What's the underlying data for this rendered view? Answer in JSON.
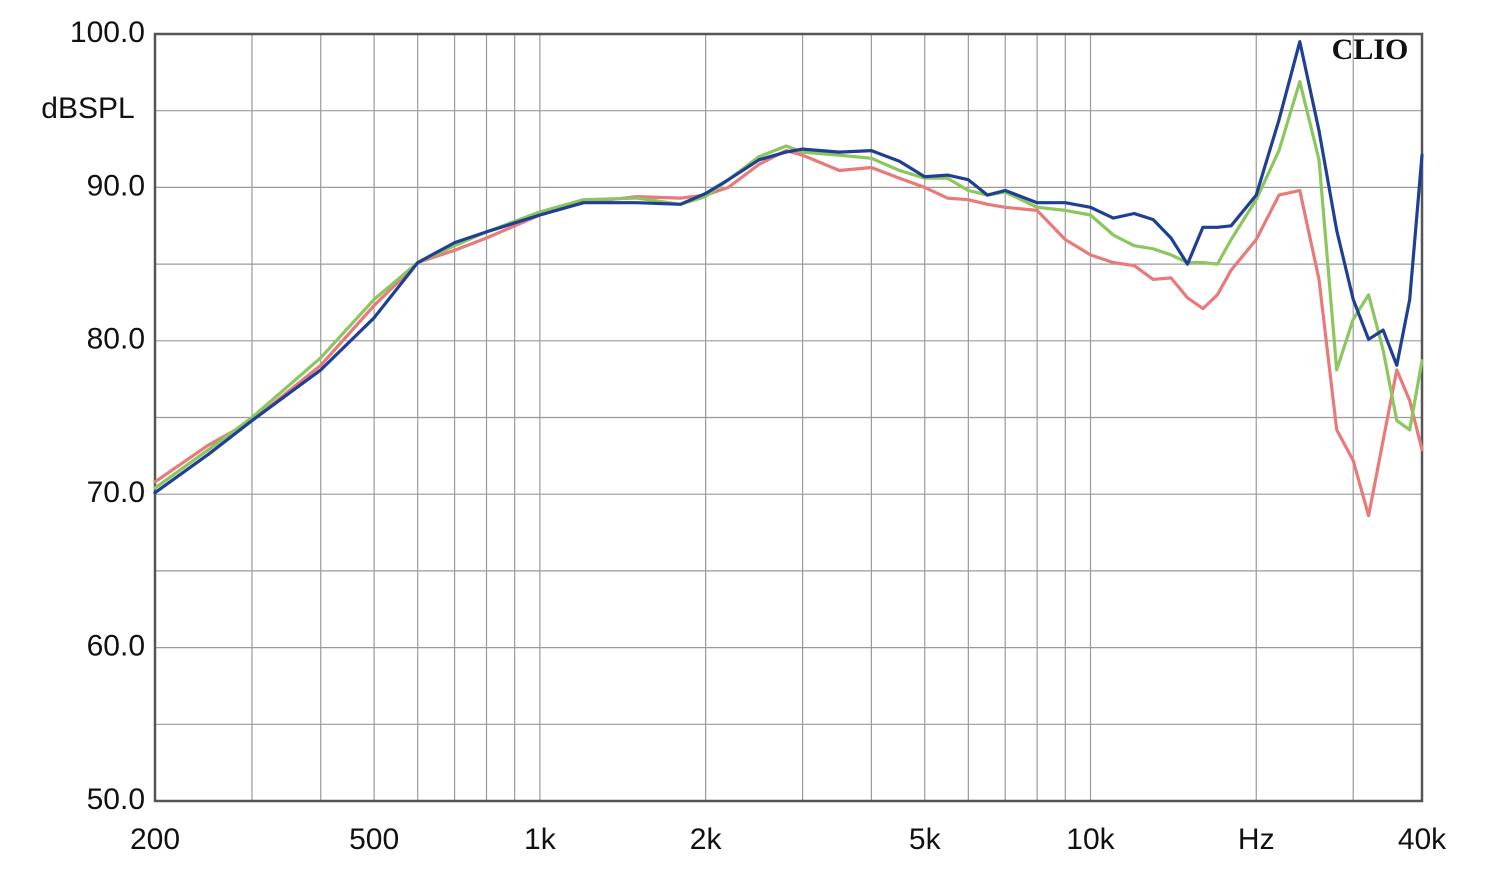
{
  "chart_data": {
    "type": "line",
    "y_label": "dBSPL",
    "annotation": "CLIO",
    "x_scale": "log",
    "grid": true,
    "xlim": [
      200,
      40000
    ],
    "ylim": [
      50,
      100
    ],
    "xticks": [
      200,
      500,
      {
        "value": 1000,
        "label": "1k"
      },
      {
        "value": 2000,
        "label": "2k"
      },
      {
        "value": 5000,
        "label": "5k"
      },
      {
        "value": 10000,
        "label": "10k"
      },
      {
        "value": 20000,
        "label": "Hz"
      },
      {
        "value": 40000,
        "label": "40k"
      }
    ],
    "x_minor_ticks": [
      300,
      400,
      600,
      700,
      800,
      900,
      3000,
      4000,
      6000,
      7000,
      8000,
      9000,
      30000
    ],
    "yticks": [
      {
        "value": 50,
        "label": "50.0"
      },
      {
        "value": 60,
        "label": "60.0"
      },
      {
        "value": 70,
        "label": "70.0"
      },
      {
        "value": 80,
        "label": "80.0"
      },
      {
        "value": 90,
        "label": "90.0"
      },
      {
        "value": 100,
        "label": "100.0"
      }
    ],
    "y_minor_ticks": [
      55,
      65,
      75,
      85,
      95
    ],
    "x": [
      200,
      250,
      300,
      400,
      500,
      600,
      700,
      800,
      1000,
      1200,
      1500,
      1800,
      2000,
      2200,
      2500,
      2800,
      3000,
      3500,
      4000,
      4500,
      5000,
      5500,
      6000,
      6500,
      7000,
      8000,
      9000,
      10000,
      11000,
      12000,
      13000,
      14000,
      15000,
      16000,
      17000,
      18000,
      20000,
      22000,
      24000,
      26000,
      28000,
      30000,
      32000,
      34000,
      36000,
      38000,
      40000
    ],
    "series": [
      {
        "color": "#e97a7a",
        "values": [
          70.8,
          73.2,
          74.8,
          78.4,
          82.3,
          85.1,
          85.9,
          86.7,
          88.2,
          89.0,
          89.4,
          89.3,
          89.5,
          90.0,
          91.5,
          92.4,
          92.1,
          91.1,
          91.3,
          90.6,
          90.0,
          89.3,
          89.2,
          88.9,
          88.7,
          88.5,
          86.6,
          85.6,
          85.1,
          84.9,
          84.0,
          84.1,
          82.8,
          82.1,
          83.0,
          84.6,
          86.6,
          89.5,
          89.8,
          84.0,
          74.2,
          72.2,
          68.6,
          73.5,
          78.1,
          76.1,
          72.9
        ]
      },
      {
        "color": "#8cc65e",
        "values": [
          70.4,
          72.9,
          75.0,
          78.9,
          82.7,
          85.1,
          86.2,
          87.1,
          88.4,
          89.2,
          89.3,
          88.9,
          89.4,
          90.5,
          92.0,
          92.7,
          92.3,
          92.1,
          91.9,
          91.1,
          90.6,
          90.6,
          89.8,
          89.5,
          89.7,
          88.7,
          88.5,
          88.2,
          86.9,
          86.2,
          86.0,
          85.6,
          85.1,
          85.1,
          85.0,
          86.6,
          89.2,
          92.4,
          96.9,
          91.8,
          78.1,
          81.4,
          83.0,
          79.4,
          74.8,
          74.2,
          78.7
        ]
      },
      {
        "color": "#1f3f93",
        "values": [
          70.1,
          72.6,
          74.8,
          78.1,
          81.5,
          85.1,
          86.4,
          87.1,
          88.2,
          89.0,
          89.0,
          88.9,
          89.6,
          90.5,
          91.8,
          92.3,
          92.5,
          92.3,
          92.4,
          91.7,
          90.7,
          90.8,
          90.5,
          89.5,
          89.8,
          89.0,
          89.0,
          88.7,
          88.0,
          88.3,
          87.9,
          86.7,
          85.0,
          87.4,
          87.4,
          87.5,
          89.5,
          94.4,
          99.5,
          93.7,
          87.2,
          82.7,
          80.1,
          80.7,
          78.4,
          82.7,
          92.1
        ]
      }
    ]
  }
}
